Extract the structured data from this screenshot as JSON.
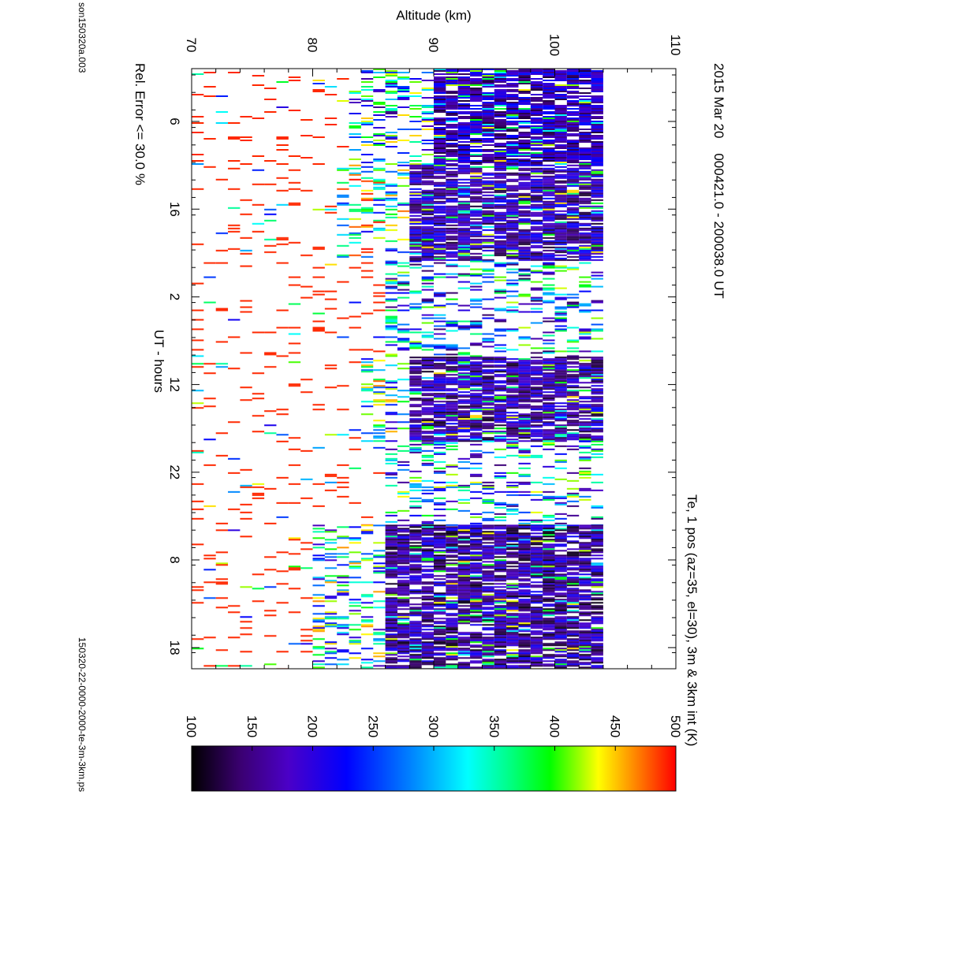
{
  "page": {
    "header_left": "son150320a.003",
    "date_line": "2015 Mar 20    000421.0 - 200038.0 UT",
    "error_note": "Rel. Error <= 30.0 %",
    "plot_title": "Te, 1 pos (az=35, el=30), 3m & 3km int (K)",
    "footer_file": "150320-22-0000-2000-te-3m-3km.ps"
  },
  "chart_data": {
    "type": "heatmap",
    "title": "Te, 1 pos (az=35, el=30), 3m & 3km int (K)",
    "xlabel": "UT - hours",
    "ylabel": "Altitude (km)",
    "x_tick_labels": [
      "6",
      "16",
      "2",
      "12",
      "22",
      "8",
      "18"
    ],
    "y_tick_labels": [
      "70",
      "80",
      "90",
      "100",
      "110"
    ],
    "ylim": [
      70,
      110
    ],
    "colorbar": {
      "label": "Te, 1 pos (az=35, el=30), 3m & 3km int (K)",
      "range": [
        100,
        500
      ],
      "tick_labels": [
        "100",
        "150",
        "200",
        "250",
        "300",
        "350",
        "400",
        "450",
        "500"
      ],
      "stops": [
        "#000000",
        "#3a0070",
        "#4b00c8",
        "#0000ff",
        "#0080ff",
        "#00ffff",
        "#00ff80",
        "#00ff00",
        "#ffff00",
        "#ff8000",
        "#ff0000"
      ]
    },
    "regions": [
      {
        "x": [
          0.0,
          0.16
        ],
        "alt": [
          70,
          83
        ],
        "note": "sparse",
        "te": 480
      },
      {
        "x": [
          0.0,
          0.16
        ],
        "alt": [
          83,
          90
        ],
        "note": "mixed",
        "te": 300
      },
      {
        "x": [
          0.0,
          0.16
        ],
        "alt": [
          90,
          103.5
        ],
        "note": "dense",
        "te": 180
      },
      {
        "x": [
          0.16,
          0.32
        ],
        "alt": [
          70,
          82
        ],
        "note": "sparse",
        "te": 480
      },
      {
        "x": [
          0.16,
          0.32
        ],
        "alt": [
          82,
          88
        ],
        "note": "mixed",
        "te": 350
      },
      {
        "x": [
          0.16,
          0.32
        ],
        "alt": [
          88,
          104
        ],
        "note": "dense",
        "te": 175
      },
      {
        "x": [
          0.32,
          0.48
        ],
        "alt": [
          70,
          86
        ],
        "note": "sparse",
        "te": 470
      },
      {
        "x": [
          0.32,
          0.48
        ],
        "alt": [
          86,
          103.5
        ],
        "note": "mixed",
        "te": 280
      },
      {
        "x": [
          0.48,
          0.62
        ],
        "alt": [
          70,
          84
        ],
        "note": "sparse",
        "te": 470
      },
      {
        "x": [
          0.48,
          0.62
        ],
        "alt": [
          84,
          88
        ],
        "note": "mixed",
        "te": 330
      },
      {
        "x": [
          0.48,
          0.62
        ],
        "alt": [
          88,
          103.2
        ],
        "note": "dense",
        "te": 170
      },
      {
        "x": [
          0.62,
          0.76
        ],
        "alt": [
          70,
          86
        ],
        "note": "sparse",
        "te": 480
      },
      {
        "x": [
          0.62,
          0.76
        ],
        "alt": [
          86,
          103.2
        ],
        "note": "mixed",
        "te": 290
      },
      {
        "x": [
          0.76,
          1.0
        ],
        "alt": [
          70,
          80
        ],
        "note": "sparse",
        "te": 470
      },
      {
        "x": [
          0.76,
          1.0
        ],
        "alt": [
          80,
          86
        ],
        "note": "mixed",
        "te": 320
      },
      {
        "x": [
          0.76,
          1.0
        ],
        "alt": [
          86,
          103.3
        ],
        "note": "dense",
        "te": 165
      }
    ]
  }
}
